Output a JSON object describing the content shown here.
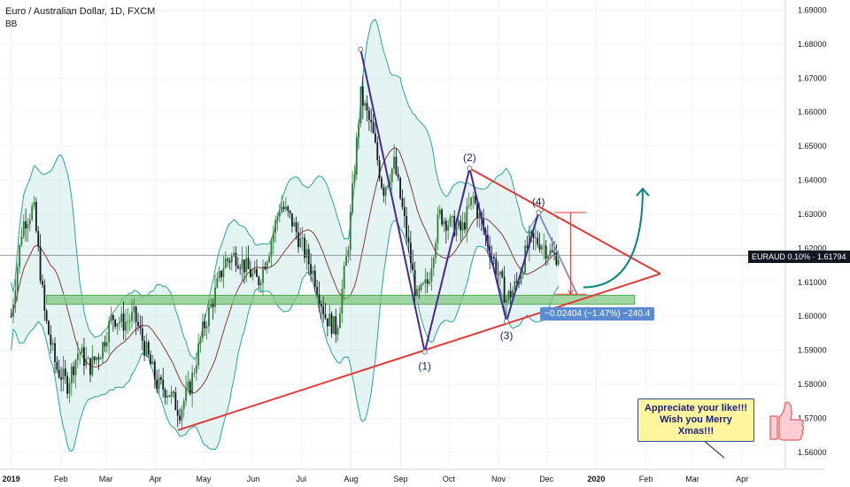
{
  "header": {
    "title": "Euro / Australian Dollar, 1D, FXCM",
    "indicator": "BB"
  },
  "price_badge": "EURAUD 0.10% · 1.61794",
  "measure_label": "−0.02404 (−1.47%) −240.4",
  "note_lines": [
    "Appreciate your like!!!",
    "Wish you Merry Xmas!!!"
  ],
  "colors": {
    "up": "#2e7d32",
    "down": "#131722",
    "triangle": "#e53935",
    "wave": "#4527a0",
    "band_fill": "#b2dfdb",
    "band_line": "#26a69a",
    "basis": "#8d3a3a",
    "support_zone": "#81c784",
    "arrow": "#00897b"
  },
  "chart_data": {
    "type": "candlestick",
    "y_axis": {
      "min": 1.555,
      "max": 1.693,
      "ticks": [
        "1.56000",
        "1.57000",
        "1.58000",
        "1.59000",
        "1.60000",
        "1.61000",
        "1.62000",
        "1.63000",
        "1.64000",
        "1.65000",
        "1.66000",
        "1.67000",
        "1.68000",
        "1.69000"
      ]
    },
    "x_axis": {
      "ticks": [
        "2019",
        "Feb",
        "Mar",
        "Apr",
        "May",
        "Jun",
        "Jul",
        "Aug",
        "Sep",
        "Oct",
        "Nov",
        "Dec",
        "2020",
        "Feb",
        "Mar",
        "Apr"
      ]
    },
    "current_price": 1.61794,
    "waves": [
      {
        "label": "",
        "date": "2019-08-07",
        "price": 1.6785
      },
      {
        "label": "(1)",
        "date": "2019-09-16",
        "price": 1.5895
      },
      {
        "label": "(2)",
        "date": "2019-10-14",
        "price": 1.6435
      },
      {
        "label": "(3)",
        "date": "2019-11-06",
        "price": 1.5985
      },
      {
        "label": "(4)",
        "date": "2019-11-26",
        "price": 1.6305
      },
      {
        "label": "",
        "date": "2019-12-20",
        "price": 1.6065
      }
    ],
    "support_zone": [
      1.6035,
      1.6062
    ],
    "triangle_upper": [
      {
        "date": "2019-10-14",
        "price": 1.6435
      },
      {
        "date": "2020-02-10",
        "price": 1.6125
      }
    ],
    "triangle_lower": [
      {
        "date": "2019-04-15",
        "price": 1.5665
      },
      {
        "date": "2020-02-10",
        "price": 1.6125
      }
    ],
    "measure": {
      "from": 1.6305,
      "to": 1.6065,
      "change": -0.02404,
      "percent": -1.47,
      "pips": -240.4
    },
    "close_series": [
      {
        "date": "2019-01-01",
        "price": 1.6
      },
      {
        "date": "2019-01-08",
        "price": 1.627
      },
      {
        "date": "2019-01-15",
        "price": 1.632
      },
      {
        "date": "2019-01-22",
        "price": 1.6
      },
      {
        "date": "2019-01-29",
        "price": 1.585
      },
      {
        "date": "2019-02-05",
        "price": 1.58
      },
      {
        "date": "2019-02-12",
        "price": 1.59
      },
      {
        "date": "2019-02-19",
        "price": 1.585
      },
      {
        "date": "2019-02-26",
        "price": 1.59
      },
      {
        "date": "2019-03-05",
        "price": 1.6
      },
      {
        "date": "2019-03-12",
        "price": 1.598
      },
      {
        "date": "2019-03-19",
        "price": 1.6
      },
      {
        "date": "2019-03-26",
        "price": 1.59
      },
      {
        "date": "2019-04-02",
        "price": 1.58
      },
      {
        "date": "2019-04-09",
        "price": 1.578
      },
      {
        "date": "2019-04-16",
        "price": 1.572
      },
      {
        "date": "2019-04-23",
        "price": 1.58
      },
      {
        "date": "2019-04-30",
        "price": 1.595
      },
      {
        "date": "2019-05-07",
        "price": 1.605
      },
      {
        "date": "2019-05-14",
        "price": 1.616
      },
      {
        "date": "2019-05-21",
        "price": 1.618
      },
      {
        "date": "2019-05-28",
        "price": 1.614
      },
      {
        "date": "2019-06-04",
        "price": 1.61
      },
      {
        "date": "2019-06-11",
        "price": 1.62
      },
      {
        "date": "2019-06-18",
        "price": 1.633
      },
      {
        "date": "2019-06-25",
        "price": 1.628
      },
      {
        "date": "2019-07-02",
        "price": 1.62
      },
      {
        "date": "2019-07-09",
        "price": 1.612
      },
      {
        "date": "2019-07-16",
        "price": 1.6
      },
      {
        "date": "2019-07-23",
        "price": 1.596
      },
      {
        "date": "2019-07-30",
        "price": 1.62
      },
      {
        "date": "2019-08-07",
        "price": 1.665
      },
      {
        "date": "2019-08-14",
        "price": 1.655
      },
      {
        "date": "2019-08-21",
        "price": 1.637
      },
      {
        "date": "2019-08-28",
        "price": 1.645
      },
      {
        "date": "2019-09-04",
        "price": 1.626
      },
      {
        "date": "2019-09-11",
        "price": 1.605
      },
      {
        "date": "2019-09-18",
        "price": 1.61
      },
      {
        "date": "2019-09-25",
        "price": 1.63
      },
      {
        "date": "2019-10-02",
        "price": 1.627
      },
      {
        "date": "2019-10-09",
        "price": 1.625
      },
      {
        "date": "2019-10-16",
        "price": 1.635
      },
      {
        "date": "2019-10-23",
        "price": 1.625
      },
      {
        "date": "2019-10-30",
        "price": 1.615
      },
      {
        "date": "2019-11-06",
        "price": 1.605
      },
      {
        "date": "2019-11-13",
        "price": 1.61
      },
      {
        "date": "2019-11-20",
        "price": 1.622
      },
      {
        "date": "2019-11-27",
        "price": 1.622
      },
      {
        "date": "2019-12-04",
        "price": 1.618
      }
    ]
  }
}
